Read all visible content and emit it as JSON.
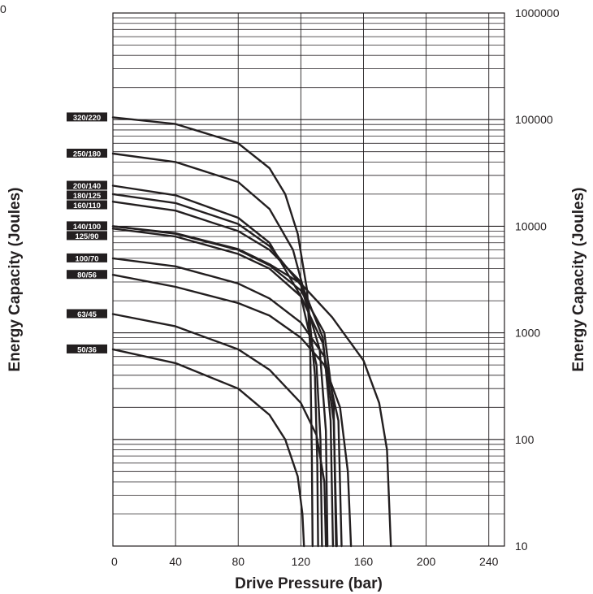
{
  "chart_data": {
    "type": "line",
    "xlabel": "Drive Pressure (bar)",
    "ylabel_left": "Energy Capacity (Joules)",
    "ylabel_right": "Energy Capacity (Joules)",
    "x_ticks": [
      "0",
      "40",
      "80",
      "120",
      "160",
      "200",
      "240"
    ],
    "y_ticks": [
      "10",
      "100",
      "1000",
      "10000",
      "100000",
      "1000000"
    ],
    "xlim": [
      0,
      250
    ],
    "ylim": [
      10,
      1000000
    ],
    "y_scale": "log",
    "grid": true,
    "corner_label": "0",
    "series": [
      {
        "name": "320/220",
        "points": [
          [
            0,
            105000
          ],
          [
            40,
            91000
          ],
          [
            80,
            60000
          ],
          [
            100,
            35000
          ],
          [
            110,
            20000
          ],
          [
            118,
            8500
          ],
          [
            124,
            2500
          ],
          [
            126,
            700
          ],
          [
            127,
            70
          ],
          [
            127.5,
            10
          ]
        ]
      },
      {
        "name": "250/180",
        "points": [
          [
            0,
            48000
          ],
          [
            40,
            40000
          ],
          [
            80,
            26000
          ],
          [
            100,
            14500
          ],
          [
            115,
            6000
          ],
          [
            125,
            1700
          ],
          [
            129,
            400
          ],
          [
            130.5,
            60
          ],
          [
            131,
            10
          ]
        ]
      },
      {
        "name": "200/140",
        "points": [
          [
            0,
            24000
          ],
          [
            40,
            19500
          ],
          [
            80,
            12000
          ],
          [
            100,
            7000
          ],
          [
            120,
            2200
          ],
          [
            130,
            500
          ],
          [
            132.5,
            100
          ],
          [
            133.5,
            10
          ]
        ]
      },
      {
        "name": "180/125",
        "points": [
          [
            0,
            20000
          ],
          [
            40,
            16500
          ],
          [
            80,
            10500
          ],
          [
            100,
            6500
          ],
          [
            120,
            2800
          ],
          [
            132,
            700
          ],
          [
            136,
            120
          ],
          [
            137,
            10
          ]
        ]
      },
      {
        "name": "160/110",
        "points": [
          [
            0,
            17000
          ],
          [
            40,
            14000
          ],
          [
            80,
            9000
          ],
          [
            100,
            6000
          ],
          [
            120,
            3000
          ],
          [
            134,
            900
          ],
          [
            139,
            150
          ],
          [
            140.5,
            10
          ]
        ]
      },
      {
        "name": "140/100",
        "points": [
          [
            0,
            10000
          ],
          [
            40,
            8500
          ],
          [
            80,
            6000
          ],
          [
            100,
            4300
          ],
          [
            120,
            2500
          ],
          [
            135,
            1000
          ],
          [
            141,
            200
          ],
          [
            142.5,
            10
          ]
        ]
      },
      {
        "name": "125/90",
        "points": [
          [
            0,
            9500
          ],
          [
            40,
            8000
          ],
          [
            80,
            5500
          ],
          [
            100,
            4000
          ],
          [
            120,
            2200
          ],
          [
            134,
            800
          ],
          [
            141,
            150
          ],
          [
            143,
            10
          ]
        ]
      },
      {
        "name": "100/70",
        "points": [
          [
            0,
            5000
          ],
          [
            40,
            4200
          ],
          [
            80,
            2900
          ],
          [
            100,
            2100
          ],
          [
            120,
            1250
          ],
          [
            135,
            600
          ],
          [
            144,
            150
          ],
          [
            146,
            10
          ]
        ]
      },
      {
        "name": "80/56",
        "points": [
          [
            0,
            3500
          ],
          [
            40,
            2700
          ],
          [
            80,
            1900
          ],
          [
            100,
            1450
          ],
          [
            120,
            900
          ],
          [
            135,
            500
          ],
          [
            145,
            200
          ],
          [
            150,
            50
          ],
          [
            152,
            10
          ]
        ]
      },
      {
        "name": "63/45",
        "points": [
          [
            0,
            1500
          ],
          [
            40,
            1150
          ],
          [
            80,
            700
          ],
          [
            100,
            450
          ],
          [
            120,
            220
          ],
          [
            130,
            110
          ],
          [
            135,
            40
          ],
          [
            136,
            10
          ]
        ]
      },
      {
        "name": "50/36",
        "points": [
          [
            0,
            700
          ],
          [
            40,
            520
          ],
          [
            80,
            300
          ],
          [
            100,
            170
          ],
          [
            110,
            100
          ],
          [
            118,
            45
          ],
          [
            121,
            20
          ],
          [
            122,
            10
          ]
        ]
      },
      {
        "name": "",
        "points": [
          [
            0,
            10000
          ],
          [
            40,
            8600
          ],
          [
            80,
            6100
          ],
          [
            100,
            4400
          ],
          [
            120,
            2900
          ],
          [
            140,
            1400
          ],
          [
            160,
            550
          ],
          [
            170,
            220
          ],
          [
            175,
            80
          ],
          [
            177.5,
            10
          ]
        ]
      }
    ]
  }
}
